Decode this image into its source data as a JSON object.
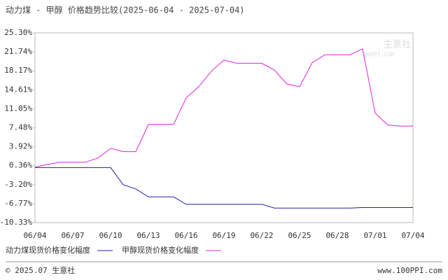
{
  "chart_data": {
    "type": "line",
    "title": "动力煤 - 甲醇 价格趋势比较(2025-06-04 - 2025-07-04)",
    "categories": [
      "06/04",
      null,
      null,
      "06/07",
      null,
      null,
      "06/10",
      null,
      null,
      "06/13",
      null,
      null,
      "06/16",
      null,
      null,
      "06/19",
      null,
      null,
      "06/22",
      null,
      null,
      "06/25",
      null,
      null,
      "06/28",
      null,
      null,
      "07/01",
      null,
      null,
      "07/04"
    ],
    "series": [
      {
        "name": "动力煤现货价格变化幅度",
        "color": "#1f1fa8",
        "values": [
          0,
          0,
          0,
          0,
          0,
          0,
          0,
          -3.2,
          -4.0,
          -5.5,
          -5.5,
          -5.5,
          -6.9,
          -6.9,
          -6.9,
          -6.9,
          -6.9,
          -6.9,
          -6.9,
          -7.6,
          -7.6,
          -7.6,
          -7.6,
          -7.6,
          -7.6,
          -7.6,
          -7.5,
          -7.5,
          -7.5,
          -7.5,
          -7.5
        ]
      },
      {
        "name": "甲醇现货价格变化幅度",
        "color": "#e020e0",
        "values": [
          0.1,
          0.6,
          1.0,
          1.0,
          1.0,
          1.8,
          3.6,
          3.0,
          3.0,
          8.1,
          8.1,
          8.1,
          13.1,
          15.2,
          18.1,
          20.2,
          19.6,
          19.6,
          19.6,
          18.3,
          15.7,
          15.2,
          19.7,
          21.2,
          21.2,
          21.2,
          22.3,
          10.2,
          8.0,
          7.8,
          7.8
        ]
      }
    ],
    "ylim": [
      -10.33,
      25.3
    ],
    "yticks": [
      {
        "value": 25.3,
        "label": "25.30%"
      },
      {
        "value": 21.74,
        "label": "21.74%"
      },
      {
        "value": 18.17,
        "label": "18.17%"
      },
      {
        "value": 14.61,
        "label": "14.61%"
      },
      {
        "value": 11.05,
        "label": "11.05%"
      },
      {
        "value": 7.48,
        "label": "7.48%"
      },
      {
        "value": 3.92,
        "label": "3.92%"
      },
      {
        "value": 0.36,
        "label": "0.36%"
      },
      {
        "value": -3.2,
        "label": "-3.20%"
      },
      {
        "value": -6.77,
        "label": "-6.77%"
      },
      {
        "value": -10.33,
        "label": "-10.33%"
      }
    ],
    "grid": false,
    "watermark": [
      "生意社",
      "100PPI.COM"
    ],
    "footer_left": "© 2025.07 生意社",
    "footer_right": "www.100PPI.com"
  }
}
